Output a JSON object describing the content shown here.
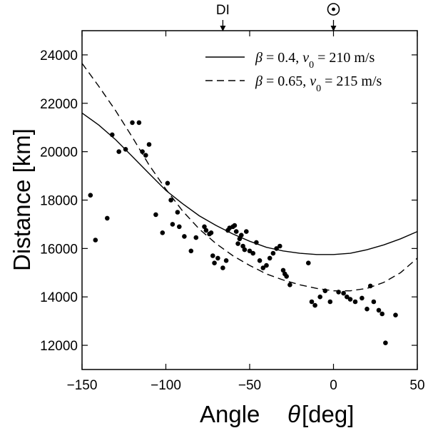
{
  "chart_data": {
    "type": "scatter",
    "title": "",
    "xlabel": "Angle",
    "xlabel_symbol": "θ",
    "xlabel_unit": "[deg]",
    "ylabel": "Distance [km]",
    "xlim": [
      -150,
      50
    ],
    "ylim": [
      11000,
      25000
    ],
    "xticks": [
      -150,
      -100,
      -50,
      0,
      50
    ],
    "yticks": [
      12000,
      14000,
      16000,
      18000,
      20000,
      22000,
      24000
    ],
    "grid": false,
    "legend_position": "top-right",
    "top_markers": [
      {
        "label": "DI",
        "x": -66
      },
      {
        "label": "☉",
        "x": 0
      }
    ],
    "series": [
      {
        "name": "model beta 0.4",
        "label": "β = 0.4, v0 = 210 m/s",
        "legend_parts": [
          "β",
          " = 0.4, ",
          "v",
          "0",
          " = 210 m/s"
        ],
        "style": "solid",
        "x": [
          -150,
          -140,
          -130,
          -120,
          -110,
          -100,
          -90,
          -80,
          -70,
          -60,
          -50,
          -40,
          -30,
          -20,
          -10,
          0,
          10,
          20,
          30,
          40,
          50
        ],
        "y": [
          21600,
          21100,
          20500,
          19800,
          19100,
          18400,
          17850,
          17350,
          16950,
          16600,
          16300,
          16050,
          15900,
          15800,
          15750,
          15750,
          15800,
          15950,
          16150,
          16400,
          16700
        ]
      },
      {
        "name": "model beta 0.65",
        "label": "β = 0.65, v0 = 215 m/s",
        "legend_parts": [
          "β",
          " = 0.65, ",
          "v",
          "0",
          " = 215 m/s"
        ],
        "style": "dashed",
        "x": [
          -150,
          -140,
          -130,
          -120,
          -110,
          -100,
          -90,
          -80,
          -70,
          -60,
          -50,
          -40,
          -30,
          -20,
          -10,
          0,
          10,
          20,
          30,
          40,
          50
        ],
        "y": [
          23650,
          22700,
          21700,
          20600,
          19450,
          18450,
          17550,
          16800,
          16200,
          15700,
          15300,
          14950,
          14700,
          14500,
          14350,
          14250,
          14250,
          14350,
          14600,
          15000,
          15600
        ]
      },
      {
        "name": "observations",
        "style": "points",
        "points": [
          [
            -145,
            18200
          ],
          [
            -142,
            16350
          ],
          [
            -135,
            17250
          ],
          [
            -132,
            20700
          ],
          [
            -128,
            20000
          ],
          [
            -124,
            20100
          ],
          [
            -120,
            21200
          ],
          [
            -116,
            21200
          ],
          [
            -114,
            20000
          ],
          [
            -112,
            19850
          ],
          [
            -110,
            20300
          ],
          [
            -106,
            17400
          ],
          [
            -102,
            16650
          ],
          [
            -99,
            18700
          ],
          [
            -97,
            18000
          ],
          [
            -96,
            17000
          ],
          [
            -93,
            17500
          ],
          [
            -92,
            16900
          ],
          [
            -89,
            16500
          ],
          [
            -85,
            15900
          ],
          [
            -82,
            16450
          ],
          [
            -77,
            16900
          ],
          [
            -76,
            16750
          ],
          [
            -74,
            16600
          ],
          [
            -73,
            16650
          ],
          [
            -72,
            15700
          ],
          [
            -71,
            15400
          ],
          [
            -69,
            15600
          ],
          [
            -66,
            15200
          ],
          [
            -64,
            15500
          ],
          [
            -63,
            16750
          ],
          [
            -62,
            16850
          ],
          [
            -60,
            16900
          ],
          [
            -59,
            16950
          ],
          [
            -58,
            16700
          ],
          [
            -57,
            16200
          ],
          [
            -56,
            16400
          ],
          [
            -55,
            16550
          ],
          [
            -54,
            16100
          ],
          [
            -53,
            15950
          ],
          [
            -52,
            16700
          ],
          [
            -50,
            15900
          ],
          [
            -48,
            15800
          ],
          [
            -46,
            16250
          ],
          [
            -44,
            15500
          ],
          [
            -42,
            15200
          ],
          [
            -40,
            15300
          ],
          [
            -38,
            15600
          ],
          [
            -36,
            15800
          ],
          [
            -34,
            16000
          ],
          [
            -32,
            16100
          ],
          [
            -30,
            15100
          ],
          [
            -29,
            14950
          ],
          [
            -28,
            14850
          ],
          [
            -26,
            14500
          ],
          [
            -15,
            15400
          ],
          [
            -13,
            13800
          ],
          [
            -11,
            13650
          ],
          [
            -8,
            14000
          ],
          [
            -5,
            14250
          ],
          [
            -2,
            13800
          ],
          [
            3,
            14200
          ],
          [
            6,
            14150
          ],
          [
            8,
            14000
          ],
          [
            10,
            13900
          ],
          [
            13,
            13800
          ],
          [
            17,
            13950
          ],
          [
            20,
            13500
          ],
          [
            22,
            14450
          ],
          [
            24,
            13800
          ],
          [
            27,
            13450
          ],
          [
            29,
            13300
          ],
          [
            31,
            12100
          ],
          [
            37,
            13250
          ]
        ]
      }
    ]
  }
}
